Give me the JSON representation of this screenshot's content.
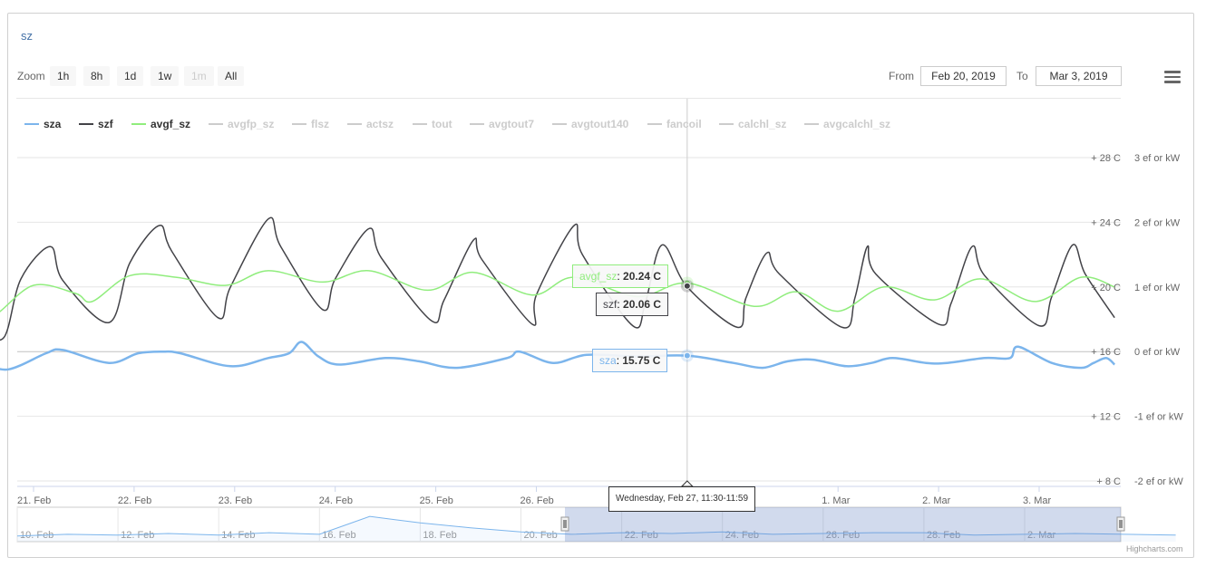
{
  "title": "sz",
  "zoom": {
    "label": "Zoom",
    "buttons": [
      {
        "label": "1h",
        "disabled": false
      },
      {
        "label": "8h",
        "disabled": false
      },
      {
        "label": "1d",
        "disabled": false
      },
      {
        "label": "1w",
        "disabled": false
      },
      {
        "label": "1m",
        "disabled": true
      },
      {
        "label": "All",
        "disabled": false
      }
    ]
  },
  "range": {
    "from_label": "From",
    "from": "Feb 20, 2019",
    "to_label": "To",
    "to": "Mar 3, 2019"
  },
  "legend": [
    {
      "name": "sza",
      "color": "#7cb5ec",
      "visible": true
    },
    {
      "name": "szf",
      "color": "#434348",
      "visible": true
    },
    {
      "name": "avgf_sz",
      "color": "#90ed7d",
      "visible": true
    },
    {
      "name": "avgfp_sz",
      "color": "#cccccc",
      "visible": false
    },
    {
      "name": "flsz",
      "color": "#cccccc",
      "visible": false
    },
    {
      "name": "actsz",
      "color": "#cccccc",
      "visible": false
    },
    {
      "name": "tout",
      "color": "#cccccc",
      "visible": false
    },
    {
      "name": "avgtout7",
      "color": "#cccccc",
      "visible": false
    },
    {
      "name": "avgtout140",
      "color": "#cccccc",
      "visible": false
    },
    {
      "name": "fancoil",
      "color": "#cccccc",
      "visible": false
    },
    {
      "name": "calchl_sz",
      "color": "#cccccc",
      "visible": false
    },
    {
      "name": "avgcalchl_sz",
      "color": "#cccccc",
      "visible": false
    }
  ],
  "tooltip": {
    "header": "Wednesday, Feb 27, 11:30-11:59",
    "avgf_sz": {
      "name": "avgf_sz",
      "value": "20.24 C"
    },
    "szf": {
      "name": "szf",
      "value": "20.06 C"
    },
    "sza": {
      "name": "sza",
      "value": "15.75 C"
    }
  },
  "credits": "Highcharts.com",
  "chart_data": {
    "type": "line",
    "x_ticks": [
      "21. Feb",
      "22. Feb",
      "23. Feb",
      "24. Feb",
      "25. Feb",
      "26. Feb",
      "27. Feb",
      "28. Feb",
      "1. Mar",
      "2. Mar",
      "3. Mar"
    ],
    "y_left": {
      "ticks": [
        "+ 28 C",
        "+ 24 C",
        "+ 20 C",
        "+ 16 C",
        "+ 12 C",
        "+ 8 C"
      ],
      "range": [
        8,
        28
      ],
      "values": [
        28,
        24,
        20,
        16,
        12,
        8
      ]
    },
    "y_right": {
      "ticks": [
        "3 ef or kW",
        "2 ef or kW",
        "1 ef or kW",
        "0 ef or kW",
        "-1 ef or kW",
        "-2 ef or kW"
      ],
      "range": [
        -2,
        3
      ],
      "values": [
        3,
        2,
        1,
        0,
        -1,
        -2
      ]
    },
    "x_range_days": [
      "Feb 20, 2019 12:00",
      "Mar 3, 2019 18:00"
    ],
    "series": [
      {
        "name": "szf",
        "color": "#434348",
        "points": [
          [
            "Feb 20 12:00",
            17.2
          ],
          [
            "Feb 20 17:00",
            16.9
          ],
          [
            "Feb 20 21:00",
            20.5
          ],
          [
            "Feb 21 04:00",
            22.5
          ],
          [
            "Feb 21 07:00",
            20.4
          ],
          [
            "Feb 21 18:00",
            17.8
          ],
          [
            "Feb 21 23:00",
            21.5
          ],
          [
            "Feb 22 06:00",
            23.8
          ],
          [
            "Feb 22 09:00",
            22.2
          ],
          [
            "Feb 22 20:00",
            18.1
          ],
          [
            "Feb 22 23:00",
            20.0
          ],
          [
            "Feb 23 08:00",
            24.2
          ],
          [
            "Feb 23 11:00",
            22.5
          ],
          [
            "Feb 23 21:00",
            18.6
          ],
          [
            "Feb 24 00:00",
            20.5
          ],
          [
            "Feb 24 08:00",
            23.6
          ],
          [
            "Feb 24 11:00",
            21.8
          ],
          [
            "Feb 24 23:00",
            17.9
          ],
          [
            "Feb 25 02:00",
            19.2
          ],
          [
            "Feb 25 09:00",
            22.9
          ],
          [
            "Feb 25 11:00",
            21.7
          ],
          [
            "Feb 25 23:00",
            17.7
          ],
          [
            "Feb 26 00:00",
            19.5
          ],
          [
            "Feb 26 09:00",
            23.8
          ],
          [
            "Feb 26 11:00",
            22.0
          ],
          [
            "Feb 26 23:00",
            17.6
          ],
          [
            "Feb 27 02:00",
            19.0
          ],
          [
            "Feb 27 06:00",
            22.6
          ],
          [
            "Feb 27 12:00",
            20.0
          ],
          [
            "Feb 28 00:00",
            17.5
          ],
          [
            "Feb 28 02:00",
            19.3
          ],
          [
            "Feb 28 07:00",
            22.1
          ],
          [
            "Feb 28 10:00",
            20.8
          ],
          [
            "Mar 1 01:00",
            17.5
          ],
          [
            "Mar 1 04:00",
            19.3
          ],
          [
            "Mar 1 07:00",
            22.5
          ],
          [
            "Mar 1 09:00",
            20.8
          ],
          [
            "Mar 2 00:00",
            17.7
          ],
          [
            "Mar 2 03:00",
            19.0
          ],
          [
            "Mar 2 08:00",
            22.5
          ],
          [
            "Mar 2 11:00",
            20.7
          ],
          [
            "Mar 3 00:00",
            17.6
          ],
          [
            "Mar 3 03:00",
            19.4
          ],
          [
            "Mar 3 08:00",
            22.6
          ],
          [
            "Mar 3 11:00",
            20.8
          ],
          [
            "Mar 3 18:00",
            18.1
          ]
        ]
      },
      {
        "name": "avgf_sz",
        "color": "#90ed7d",
        "points": [
          [
            "Feb 20 12:00",
            18.6
          ],
          [
            "Feb 20 15:00",
            18.3
          ],
          [
            "Feb 21 00:00",
            20.1
          ],
          [
            "Feb 21 10:00",
            19.6
          ],
          [
            "Feb 21 14:00",
            19.1
          ],
          [
            "Feb 21 23:00",
            20.7
          ],
          [
            "Feb 22 10:00",
            20.6
          ],
          [
            "Feb 22 22:00",
            20.1
          ],
          [
            "Feb 23 08:00",
            21.0
          ],
          [
            "Feb 23 21:00",
            20.3
          ],
          [
            "Feb 24 08:00",
            21.0
          ],
          [
            "Feb 24 22:00",
            19.8
          ],
          [
            "Feb 25 09:00",
            20.9
          ],
          [
            "Feb 25 23:00",
            19.5
          ],
          [
            "Feb 26 09:00",
            20.6
          ],
          [
            "Feb 27 00:00",
            19.4
          ],
          [
            "Feb 27 12:00",
            20.24
          ],
          [
            "Feb 28 04:00",
            18.8
          ],
          [
            "Feb 28 14:00",
            19.7
          ],
          [
            "Mar 1 00:00",
            18.5
          ],
          [
            "Mar 1 11:00",
            20.0
          ],
          [
            "Mar 1 23:00",
            19.2
          ],
          [
            "Mar 2 10:00",
            20.5
          ],
          [
            "Mar 2 23:00",
            19.1
          ],
          [
            "Mar 3 10:00",
            20.6
          ],
          [
            "Mar 3 18:00",
            20.0
          ]
        ]
      },
      {
        "name": "sza",
        "color": "#7cb5ec",
        "points": [
          [
            "Feb 20 12:00",
            15.3
          ],
          [
            "Feb 20 18:00",
            14.9
          ],
          [
            "Feb 21 03:00",
            15.9
          ],
          [
            "Feb 21 07:00",
            16.1
          ],
          [
            "Feb 21 18:00",
            15.3
          ],
          [
            "Feb 22 01:00",
            15.9
          ],
          [
            "Feb 22 07:00",
            16.0
          ],
          [
            "Feb 22 11:00",
            15.9
          ],
          [
            "Feb 22 23:00",
            15.1
          ],
          [
            "Feb 23 08:00",
            15.6
          ],
          [
            "Feb 23 13:00",
            15.9
          ],
          [
            "Feb 23 16:00",
            16.6
          ],
          [
            "Feb 23 20:00",
            15.7
          ],
          [
            "Feb 24 01:00",
            15.2
          ],
          [
            "Feb 24 12:00",
            15.6
          ],
          [
            "Feb 24 20:00",
            15.4
          ],
          [
            "Feb 25 05:00",
            15.0
          ],
          [
            "Feb 25 17:00",
            15.6
          ],
          [
            "Feb 25 20:00",
            16.0
          ],
          [
            "Feb 26 04:00",
            15.3
          ],
          [
            "Feb 26 12:00",
            15.8
          ],
          [
            "Feb 27 00:00",
            15.7
          ],
          [
            "Feb 27 12:00",
            15.75
          ],
          [
            "Feb 27 23:00",
            15.3
          ],
          [
            "Feb 28 06:00",
            15.0
          ],
          [
            "Feb 28 12:00",
            15.4
          ],
          [
            "Feb 28 18:00",
            15.5
          ],
          [
            "Mar 1 02:00",
            15.1
          ],
          [
            "Mar 1 08:00",
            15.3
          ],
          [
            "Mar 1 13:00",
            15.6
          ],
          [
            "Mar 1 21:00",
            15.3
          ],
          [
            "Mar 2 02:00",
            15.3
          ],
          [
            "Mar 2 11:00",
            15.6
          ],
          [
            "Mar 2 17:00",
            15.6
          ],
          [
            "Mar 2 19:00",
            16.3
          ],
          [
            "Mar 3 03:00",
            15.3
          ],
          [
            "Mar 3 10:00",
            15.0
          ],
          [
            "Mar 3 13:00",
            15.3
          ],
          [
            "Mar 3 16:00",
            15.6
          ],
          [
            "Mar 3 18:00",
            15.2
          ]
        ]
      }
    ],
    "navigator": {
      "x_ticks": [
        "10. Feb",
        "12. Feb",
        "14. Feb",
        "16. Feb",
        "18. Feb",
        "20. Feb",
        "22. Feb",
        "24. Feb",
        "26. Feb",
        "28. Feb",
        "2. Mar"
      ],
      "selected_range": [
        "Feb 20, 2019",
        "Mar 3, 2019"
      ]
    }
  }
}
